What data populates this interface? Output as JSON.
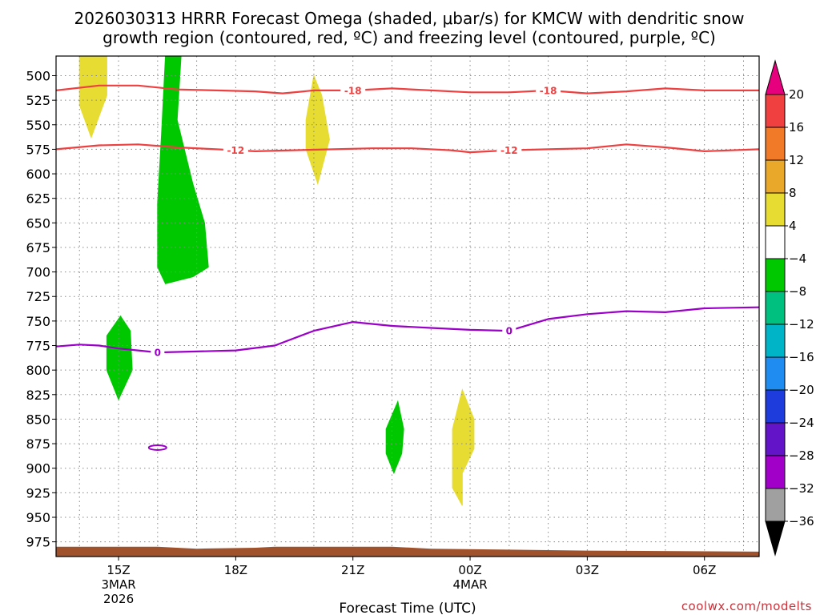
{
  "chart_data": {
    "type": "time-height",
    "title_line1": "2026030313 HRRR Forecast Omega (shaded, μbar/s) for KMCW with dendritic snow",
    "title_line2": "growth region (contoured, red, ºC) and freezing level (contoured, purple, ºC)",
    "xlabel": "Forecast Time (UTC)",
    "credit": "coolwx.com/modelts",
    "x_range_hours": [
      13.4,
      31.4
    ],
    "x_ticks": [
      {
        "hour": 15,
        "lines": [
          "15Z",
          "3MAR",
          "2026"
        ]
      },
      {
        "hour": 18,
        "lines": [
          "18Z"
        ]
      },
      {
        "hour": 21,
        "lines": [
          "21Z"
        ]
      },
      {
        "hour": 24,
        "lines": [
          "00Z",
          "4MAR"
        ]
      },
      {
        "hour": 27,
        "lines": [
          "03Z"
        ]
      },
      {
        "hour": 30,
        "lines": [
          "06Z"
        ]
      }
    ],
    "y_ticks_hpa": [
      500,
      525,
      550,
      575,
      600,
      625,
      650,
      675,
      700,
      725,
      750,
      775,
      800,
      825,
      850,
      875,
      900,
      925,
      950,
      975
    ],
    "y_range_hpa": [
      480,
      990
    ],
    "colorbar": {
      "labels": [
        "20",
        "16",
        "12",
        "8",
        "4",
        "−4",
        "−8",
        "−12",
        "−16",
        "−20",
        "−24",
        "−28",
        "−32",
        "−36"
      ],
      "top_arrow": "#e6007e",
      "bottom_arrow": "#000000",
      "bins": [
        {
          "from": 16,
          "to": 20,
          "color": "#f04040"
        },
        {
          "from": 12,
          "to": 16,
          "color": "#f07a28"
        },
        {
          "from": 8,
          "to": 12,
          "color": "#eaa82a"
        },
        {
          "from": 4,
          "to": 8,
          "color": "#e6dc32"
        },
        {
          "from": -4,
          "to": 4,
          "color": "#ffffff"
        },
        {
          "from": -8,
          "to": -4,
          "color": "#00c800"
        },
        {
          "from": -12,
          "to": -8,
          "color": "#00c080"
        },
        {
          "from": -16,
          "to": -12,
          "color": "#00b4c8"
        },
        {
          "from": -20,
          "to": -16,
          "color": "#1e8cf0"
        },
        {
          "from": -24,
          "to": -20,
          "color": "#1e3cdc"
        },
        {
          "from": -28,
          "to": -24,
          "color": "#6414c8"
        },
        {
          "from": -32,
          "to": -28,
          "color": "#a000c8"
        },
        {
          "from": -36,
          "to": -32,
          "color": "#a0a0a0"
        }
      ]
    },
    "omega_regions": [
      {
        "name": "yellow-a",
        "color": "#e6dc32",
        "points": [
          [
            14.0,
            480
          ],
          [
            14.7,
            480
          ],
          [
            14.7,
            520
          ],
          [
            14.3,
            563
          ],
          [
            14.0,
            530
          ]
        ]
      },
      {
        "name": "yellow-b",
        "color": "#e6dc32",
        "points": [
          [
            20.0,
            500
          ],
          [
            20.2,
            520
          ],
          [
            20.4,
            565
          ],
          [
            20.1,
            610
          ],
          [
            19.8,
            575
          ],
          [
            19.8,
            545
          ]
        ]
      },
      {
        "name": "yellow-c",
        "color": "#e6dc32",
        "points": [
          [
            23.8,
            820
          ],
          [
            24.1,
            850
          ],
          [
            24.1,
            880
          ],
          [
            23.8,
            905
          ],
          [
            23.8,
            938
          ],
          [
            23.55,
            920
          ],
          [
            23.55,
            860
          ]
        ]
      },
      {
        "name": "green-a",
        "color": "#00c800",
        "points": [
          [
            16.2,
            480
          ],
          [
            16.6,
            480
          ],
          [
            16.5,
            545
          ],
          [
            16.9,
            610
          ],
          [
            17.2,
            650
          ],
          [
            17.3,
            695
          ],
          [
            16.9,
            705
          ],
          [
            16.2,
            712
          ],
          [
            16.0,
            695
          ],
          [
            16.0,
            630
          ],
          [
            16.1,
            560
          ]
        ]
      },
      {
        "name": "green-b",
        "color": "#00c800",
        "points": [
          [
            15.05,
            745
          ],
          [
            15.3,
            760
          ],
          [
            15.35,
            800
          ],
          [
            15.0,
            830
          ],
          [
            14.7,
            800
          ],
          [
            14.7,
            765
          ]
        ]
      },
      {
        "name": "green-c",
        "color": "#00c800",
        "points": [
          [
            22.15,
            832
          ],
          [
            22.3,
            860
          ],
          [
            22.25,
            885
          ],
          [
            22.05,
            905
          ],
          [
            21.85,
            885
          ],
          [
            21.85,
            860
          ]
        ]
      }
    ],
    "contours": [
      {
        "label": "-18",
        "color": "#ee4040",
        "label_hours": [
          21.0,
          26.0
        ],
        "points": [
          [
            13.4,
            515
          ],
          [
            14.5,
            510
          ],
          [
            15.5,
            510
          ],
          [
            16.5,
            514
          ],
          [
            17.5,
            515
          ],
          [
            18.5,
            516
          ],
          [
            19.2,
            518
          ],
          [
            20.0,
            515
          ],
          [
            21.0,
            515
          ],
          [
            22.0,
            513
          ],
          [
            23.0,
            515
          ],
          [
            24.0,
            517
          ],
          [
            25.0,
            517
          ],
          [
            26.0,
            515
          ],
          [
            27.0,
            518
          ],
          [
            28.0,
            516
          ],
          [
            29.0,
            513
          ],
          [
            30.0,
            515
          ],
          [
            31.4,
            515
          ]
        ]
      },
      {
        "label": "-12",
        "color": "#ee4040",
        "label_hours": [
          18.0,
          25.0
        ],
        "points": [
          [
            13.4,
            575
          ],
          [
            14.5,
            571
          ],
          [
            15.5,
            570
          ],
          [
            16.5,
            573
          ],
          [
            17.5,
            575
          ],
          [
            18.5,
            577
          ],
          [
            19.5,
            576
          ],
          [
            20.5,
            575
          ],
          [
            21.5,
            574
          ],
          [
            22.5,
            574
          ],
          [
            23.5,
            576
          ],
          [
            24.0,
            578
          ],
          [
            25.0,
            576
          ],
          [
            26.0,
            575
          ],
          [
            27.0,
            574
          ],
          [
            28.0,
            570
          ],
          [
            29.0,
            573
          ],
          [
            30.0,
            577
          ],
          [
            31.4,
            575
          ]
        ]
      },
      {
        "label": "0",
        "color": "#9b00c8",
        "label_hours": [
          16.0,
          25.0
        ],
        "points": [
          [
            13.4,
            776
          ],
          [
            14.0,
            774
          ],
          [
            14.5,
            775
          ],
          [
            15.0,
            778
          ],
          [
            15.5,
            780
          ],
          [
            16.0,
            782
          ],
          [
            17.0,
            781
          ],
          [
            18.0,
            780
          ],
          [
            19.0,
            775
          ],
          [
            20.0,
            760
          ],
          [
            21.0,
            751
          ],
          [
            22.0,
            755
          ],
          [
            23.0,
            757
          ],
          [
            24.0,
            759
          ],
          [
            25.0,
            760
          ],
          [
            26.0,
            748
          ],
          [
            27.0,
            743
          ],
          [
            28.0,
            740
          ],
          [
            29.0,
            741
          ],
          [
            30.0,
            737
          ],
          [
            31.4,
            736
          ]
        ]
      }
    ],
    "small_ring": {
      "color": "#9b00c8",
      "hour": 16.0,
      "hpa": 879
    },
    "terrain": {
      "color": "#a0522d",
      "points": [
        [
          13.4,
          980
        ],
        [
          16.0,
          980
        ],
        [
          17.0,
          982
        ],
        [
          18.5,
          981
        ],
        [
          19.0,
          980
        ],
        [
          22.0,
          980
        ],
        [
          23.0,
          982
        ],
        [
          27.0,
          984
        ],
        [
          31.4,
          985
        ]
      ]
    }
  }
}
